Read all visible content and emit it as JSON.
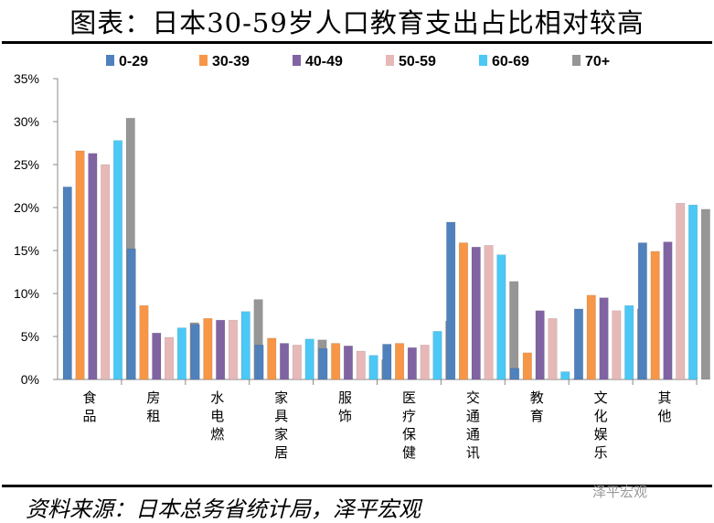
{
  "title": "图表：日本30-59岁人口教育支出占比相对较高",
  "source": "资料来源：日本总务省统计局，泽平宏观",
  "watermark": "泽平宏观",
  "chart_data": {
    "type": "bar",
    "categories": [
      "食品",
      "房租",
      "水电燃",
      "家具家居",
      "服饰",
      "医疗保健",
      "交通通讯",
      "教育",
      "文化娱乐",
      "其他"
    ],
    "series": [
      {
        "name": "0-29",
        "color": "#4f81bd",
        "values": [
          22.4,
          15.2,
          6.4,
          4.0,
          3.6,
          4.1,
          18.3,
          1.3,
          8.2,
          15.9
        ]
      },
      {
        "name": "30-39",
        "color": "#f79646",
        "values": [
          26.6,
          8.6,
          7.1,
          4.8,
          4.2,
          4.2,
          15.9,
          3.1,
          9.8,
          14.9
        ]
      },
      {
        "name": "40-49",
        "color": "#8064a2",
        "values": [
          26.3,
          5.4,
          6.9,
          4.2,
          3.9,
          3.7,
          15.4,
          8.0,
          9.5,
          16.0
        ]
      },
      {
        "name": "50-59",
        "color": "#e6b9b8",
        "values": [
          25.0,
          4.9,
          6.9,
          4.0,
          3.3,
          4.0,
          15.6,
          7.1,
          8.0,
          20.5
        ]
      },
      {
        "name": "60-69",
        "color": "#4bc8f5",
        "values": [
          27.8,
          6.0,
          7.9,
          4.7,
          2.8,
          5.6,
          14.5,
          0.9,
          8.6,
          20.3
        ]
      },
      {
        "name": "70+",
        "color": "#969696",
        "values": [
          30.4,
          6.6,
          9.3,
          4.6,
          2.3,
          6.8,
          11.4,
          0.1,
          8.2,
          19.8
        ]
      }
    ],
    "yticks": [
      "0%",
      "5%",
      "10%",
      "15%",
      "20%",
      "25%",
      "30%",
      "35%"
    ],
    "ylim": [
      0,
      35
    ],
    "grid": false,
    "legend": "top"
  }
}
